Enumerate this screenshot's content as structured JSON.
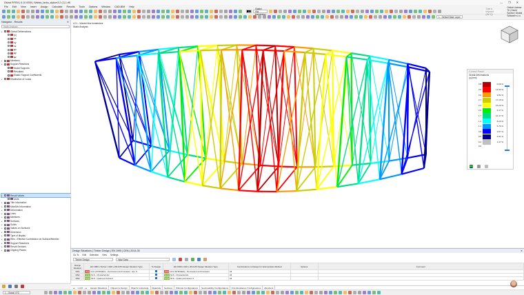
{
  "app": {
    "title": "Dlubal RFEM | 6.10.0008 | Wabka_lavka_stplom3-2 (1).1.rf6"
  },
  "window_controls": [
    "minimize",
    "maximize",
    "close"
  ],
  "menu": [
    "File",
    "Edit",
    "View",
    "Insert",
    "Assign",
    "Calculate",
    "Results",
    "Tools",
    "Options",
    "Window",
    "CAD-BIM",
    "Help"
  ],
  "toolbar": {
    "load_case": "LC1",
    "load_case_name": "Vlastní tíha konstrukce",
    "layer": "1 - Default Base Layer",
    "search_placeholder": "Type a keyword (Alt+Q)",
    "license": "Online License 76 | David Sochor | Dlubal Software s.r.o."
  },
  "navigator": {
    "title": "Navigator - Results",
    "filter": "Static Analysis",
    "top_items": [
      {
        "label": "Global Deformations",
        "level": 0,
        "type": "check",
        "checked": true
      },
      {
        "label": "|u|",
        "level": 1,
        "type": "radio",
        "checked": true
      },
      {
        "label": "ux",
        "level": 1,
        "type": "radio"
      },
      {
        "label": "uy",
        "level": 1,
        "type": "radio"
      },
      {
        "label": "uz",
        "level": 1,
        "type": "radio"
      },
      {
        "label": "φx",
        "level": 1,
        "type": "radio"
      },
      {
        "label": "φy",
        "level": 1,
        "type": "radio"
      },
      {
        "label": "φz",
        "level": 1,
        "type": "radio"
      },
      {
        "label": "Members",
        "level": 0,
        "type": "check"
      },
      {
        "label": "Support Reactions",
        "level": 0,
        "type": "check"
      },
      {
        "label": "Nodal Supports",
        "level": 1,
        "type": "check",
        "checked": true
      },
      {
        "label": "Resultant",
        "level": 1,
        "type": "check"
      },
      {
        "label": "Elastic Support Coefficients",
        "level": 1,
        "type": "check"
      },
      {
        "label": "Distribution of Loads",
        "level": 0,
        "type": "check"
      }
    ],
    "bottom_items": [
      {
        "label": "Result Values",
        "level": 0,
        "selected": true
      },
      {
        "label": "Units",
        "level": 1
      },
      {
        "label": "Title Information",
        "level": 0,
        "checked": true
      },
      {
        "label": "Max/Min Information",
        "level": 0
      },
      {
        "label": "Deformation",
        "level": 0
      },
      {
        "label": "Lines",
        "level": 0
      },
      {
        "label": "Members",
        "level": 0
      },
      {
        "label": "Surfaces",
        "level": 0
      },
      {
        "label": "Solids",
        "level": 0
      },
      {
        "label": "Values on Surfaces",
        "level": 0
      },
      {
        "label": "Dimension",
        "level": 0
      },
      {
        "label": "Type of display",
        "level": 0
      },
      {
        "label": "Ribs - Effective Contribution on Surface/Member",
        "level": 0,
        "checked": true
      },
      {
        "label": "Support Reactions",
        "level": 0
      },
      {
        "label": "Result Sections",
        "level": 0
      },
      {
        "label": "Clipping Planes",
        "level": 0
      }
    ]
  },
  "viewport": {
    "line1": "LC1 - Vlastní tíha konstrukce",
    "line2": "Static Analysis"
  },
  "control_panel": {
    "title": "Control Panel",
    "heading": "Global Deformations",
    "unit": "|u| [mm]",
    "legend": [
      {
        "value": "3.8",
        "color": "#b00000",
        "percent": "0.00 %"
      },
      {
        "value": "3.5",
        "color": "#ff0000",
        "percent": "12.53 %"
      },
      {
        "value": "3.0",
        "color": "#ff9900",
        "percent": "9.81 %"
      },
      {
        "value": "2.7",
        "color": "#cccc00",
        "percent": "17.18 %"
      },
      {
        "value": "2.3",
        "color": "#ffff00",
        "percent": "15.20 %"
      },
      {
        "value": "2.0",
        "color": "#00ee00",
        "percent": "6.47 %"
      },
      {
        "value": "1.7",
        "color": "#00dd88",
        "percent": "10.47 %"
      },
      {
        "value": "1.4",
        "color": "#00ffff",
        "percent": "8.20 %"
      },
      {
        "value": "1.1",
        "color": "#0099ff",
        "percent": "5.76 %"
      },
      {
        "value": "0.8",
        "color": "#0000ff",
        "percent": "3.87 %"
      },
      {
        "value": "0.5",
        "color": "#00008b",
        "percent": "2.91 %"
      },
      {
        "value": "0.2",
        "color": "#c0c0c0",
        "percent": "1.47 %"
      }
    ],
    "min_value": "0.0"
  },
  "design_panel": {
    "title": "Design Situations | Timber Design | EN 1995 | CEN | 2014-05",
    "menu": [
      "Go To",
      "Edit",
      "Selection",
      "View",
      "Settings"
    ],
    "module": "Timber Design",
    "input": "Input Data",
    "columns": [
      "Design Situation",
      "EN 1990 | Timber | CEN | 2010-05 Design Situation Type",
      "To Design",
      "EN 1990 | CEN | 2014-05 Design Situation Type",
      "Combinations to Design for Enumeration Method",
      "Options",
      "Comment"
    ],
    "rows": [
      {
        "id": "DS1",
        "tag": "ULS",
        "tag_color": "#e05050",
        "type1": "ULS (STR/GEO) - Permanent and transient - Eq. 6...",
        "to_design": true,
        "type2": "ULS (STR/GEO) - Permanent and transient",
        "combos": "All"
      },
      {
        "id": "DS2",
        "tag": "S Ch",
        "tag_color": "#88bb44",
        "type1": "SLS - Characteristic",
        "to_design": true,
        "type2": "SLS - Characteristic",
        "combos": "All"
      },
      {
        "id": "DS3",
        "tag": "S Qp",
        "tag_color": "#88bb44",
        "type1": "SLS - Quasi-permanent",
        "to_design": true,
        "type2": "SLS - Quasi-permanent 1",
        "combos": "All"
      }
    ],
    "pager": "1 of 8",
    "tabs": [
      "Design Situations",
      "Objects to Design",
      "Objects to Exclude",
      "Materials",
      "Sections",
      "Ultimate Configurations",
      "Serviceability Configurations",
      "Fire Resistance Configurations",
      "Members"
    ],
    "active_tab": "Design Situations"
  },
  "status": {
    "coord_system": "1 - Global XYZ"
  }
}
